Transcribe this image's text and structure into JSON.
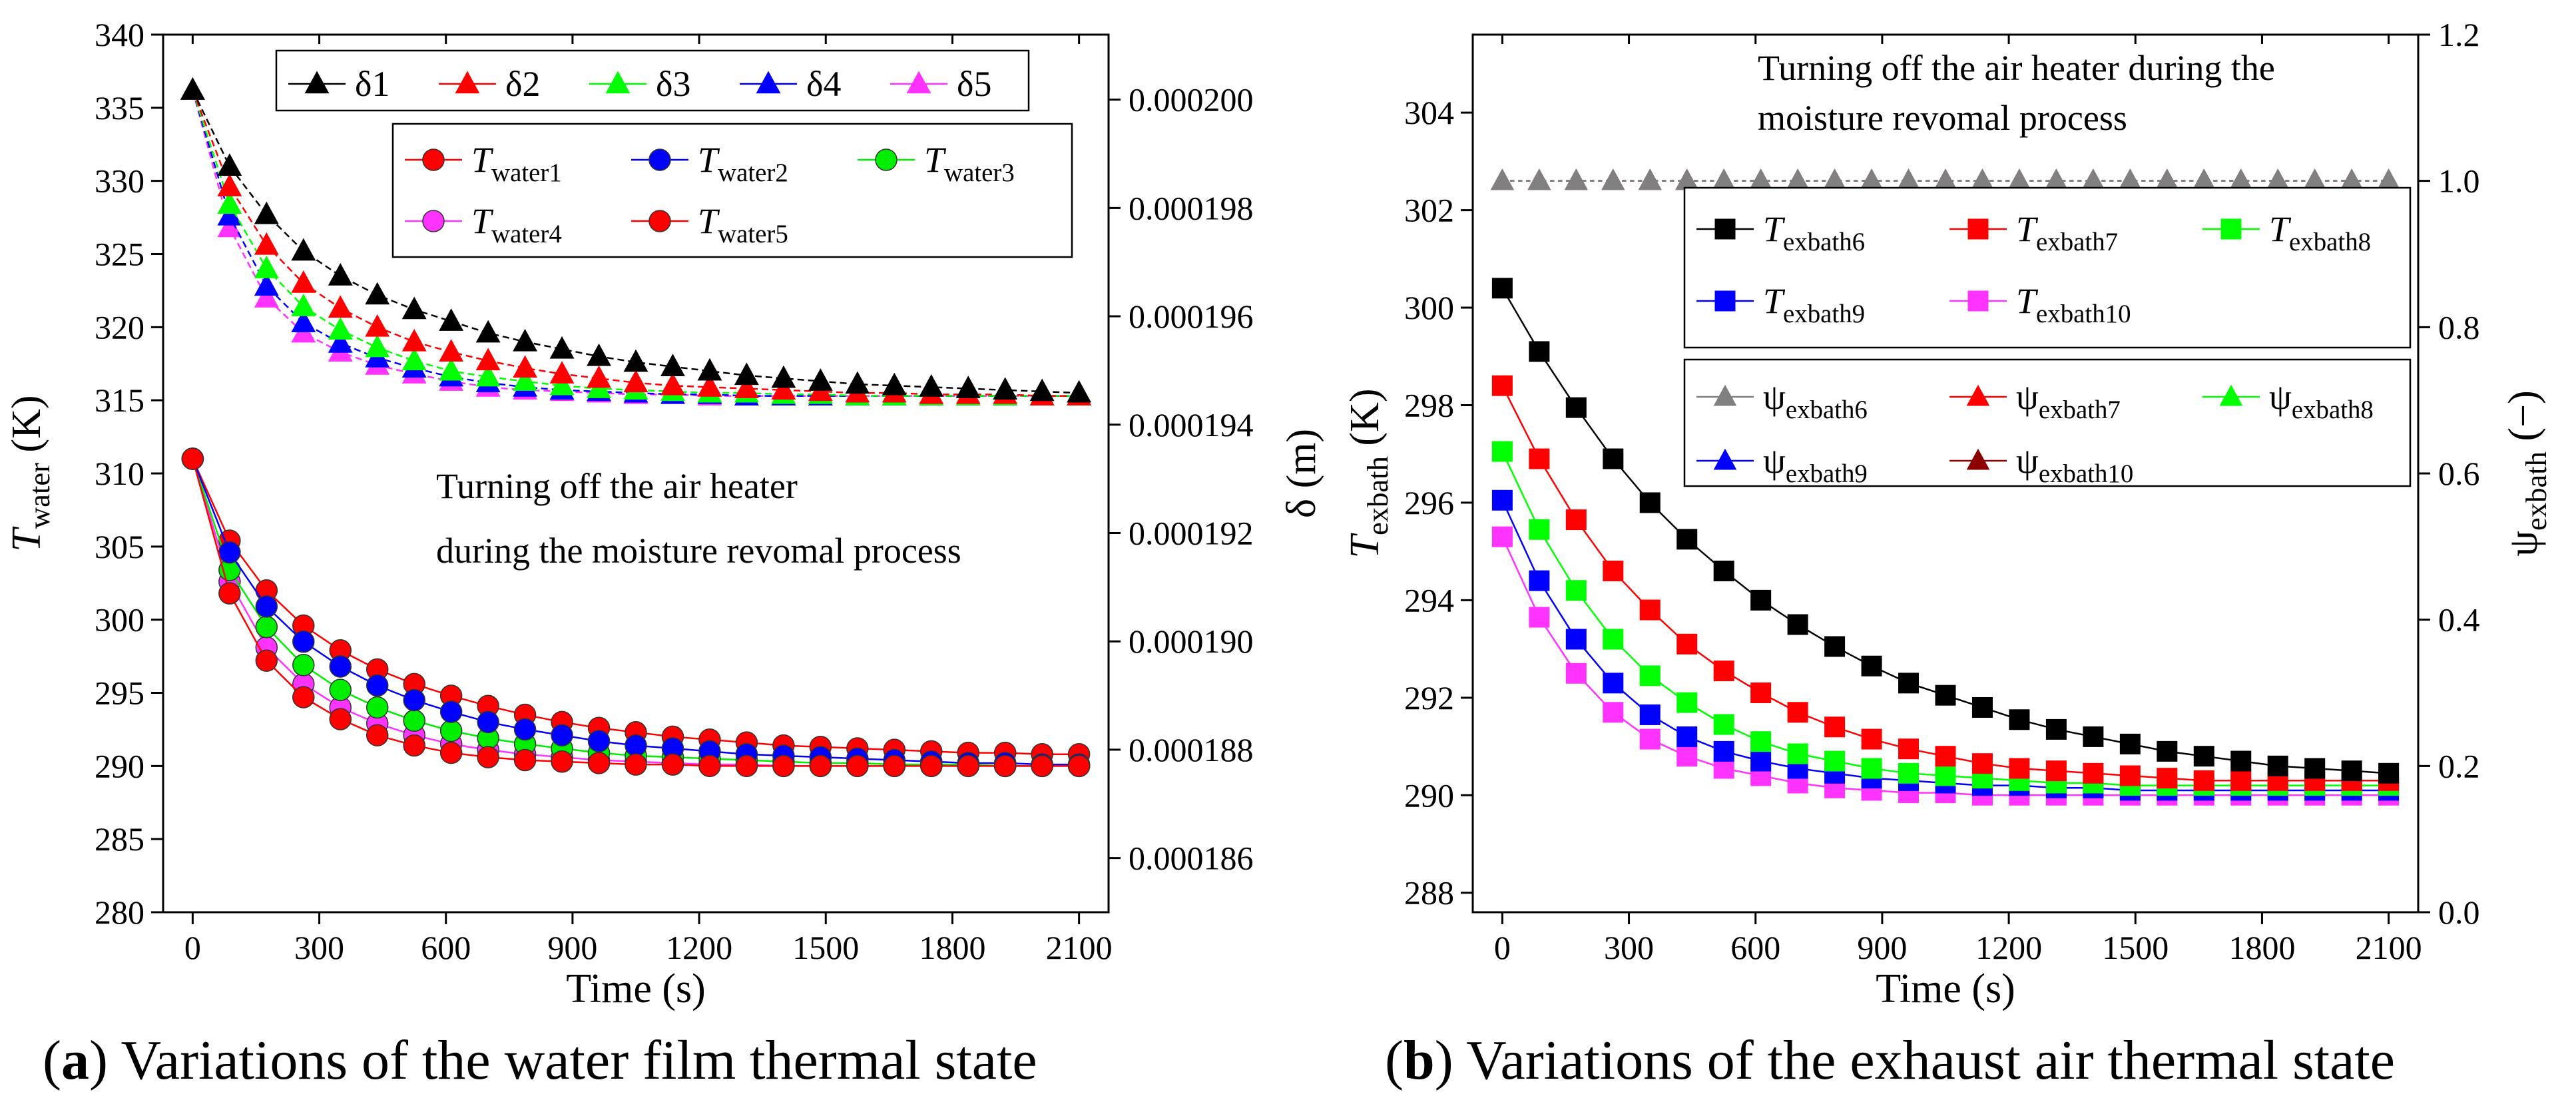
{
  "chart_data": [
    {
      "id": "a",
      "type": "line",
      "caption": {
        "label": "a",
        "text": " Variations of the water film thermal state"
      },
      "x": [
        0,
        87.5,
        175,
        262.5,
        350,
        437.5,
        525,
        612.5,
        700,
        787.5,
        875,
        962.5,
        1050,
        1137.5,
        1225,
        1312.5,
        1400,
        1487.5,
        1575,
        1662.5,
        1750,
        1837.5,
        1925,
        2012.5,
        2100
      ],
      "xlabel": "Time  (s)",
      "xlim": [
        -70,
        2170
      ],
      "xticks": [
        0,
        300,
        600,
        900,
        1200,
        1500,
        1800,
        2100
      ],
      "ylabel_main": "T",
      "ylabel_sub": "water",
      "ylabel_unit": " (K)",
      "ylim": [
        280,
        340
      ],
      "yticks": [
        280,
        285,
        290,
        295,
        300,
        305,
        310,
        315,
        320,
        325,
        330,
        335,
        340
      ],
      "y2label": "δ (m)",
      "y2lim": [
        0.000185,
        0.0002012
      ],
      "y2ticks": [
        0.000186,
        0.000188,
        0.00019,
        0.000192,
        0.000194,
        0.000196,
        0.000198,
        0.0002
      ],
      "y2ticklabels": [
        "0.000186",
        "0.000188",
        "0.000190",
        "0.000192",
        "0.000194",
        "0.000196",
        "0.000198",
        "0.000200"
      ],
      "annotation": [
        "Turning off the air heater",
        "during the moisture revomal process"
      ],
      "series": [
        {
          "name": "δ1",
          "main": "δ1",
          "sub": "",
          "marker": "triangle",
          "color": "#000000",
          "legend": 1,
          "axis": "y",
          "values": [
            336.2,
            331.0,
            327.7,
            325.2,
            323.5,
            322.2,
            321.2,
            320.4,
            319.6,
            319.0,
            318.5,
            318.0,
            317.6,
            317.3,
            317.0,
            316.7,
            316.5,
            316.3,
            316.1,
            316.0,
            315.9,
            315.8,
            315.7,
            315.6,
            315.5
          ]
        },
        {
          "name": "δ2",
          "main": "δ2",
          "sub": "",
          "marker": "triangle",
          "color": "#ff0000",
          "legend": 1,
          "axis": "y",
          "values": [
            336.2,
            329.6,
            325.6,
            323.0,
            321.3,
            320.0,
            319.0,
            318.3,
            317.7,
            317.2,
            316.8,
            316.5,
            316.2,
            316.0,
            315.9,
            315.8,
            315.7,
            315.6,
            315.5,
            315.5,
            315.4,
            315.4,
            315.4,
            315.3,
            315.3
          ]
        },
        {
          "name": "δ3",
          "main": "δ3",
          "sub": "",
          "marker": "triangle",
          "color": "#00ff00",
          "legend": 1,
          "axis": "y",
          "values": [
            336.2,
            328.4,
            324.0,
            321.4,
            319.8,
            318.6,
            317.7,
            317.0,
            316.6,
            316.3,
            316.0,
            315.8,
            315.7,
            315.6,
            315.5,
            315.5,
            315.4,
            315.4,
            315.3,
            315.3,
            315.3,
            315.3,
            315.3,
            315.3,
            315.3
          ]
        },
        {
          "name": "δ4",
          "main": "δ4",
          "sub": "",
          "marker": "triangle",
          "color": "#0000ff",
          "legend": 1,
          "axis": "y",
          "values": [
            336.2,
            327.6,
            322.8,
            320.3,
            318.9,
            317.9,
            317.2,
            316.6,
            316.2,
            315.9,
            315.7,
            315.6,
            315.5,
            315.4,
            315.4,
            315.3,
            315.3,
            315.3,
            315.3,
            315.3,
            315.3,
            315.3,
            315.3,
            315.3,
            315.3
          ]
        },
        {
          "name": "δ5",
          "main": "δ5",
          "sub": "",
          "marker": "triangle",
          "color": "#ff33ff",
          "legend": 1,
          "axis": "y",
          "values": [
            336.2,
            326.8,
            322.0,
            319.6,
            318.3,
            317.4,
            316.8,
            316.3,
            315.9,
            315.7,
            315.6,
            315.5,
            315.4,
            315.4,
            315.3,
            315.3,
            315.3,
            315.3,
            315.3,
            315.3,
            315.3,
            315.3,
            315.3,
            315.3,
            315.3
          ]
        },
        {
          "name": "Twater1",
          "main": "T",
          "sub": "water1",
          "marker": "circle",
          "color": "#ff0000",
          "legend": 2,
          "axis": "y",
          "values": [
            311.0,
            301.8,
            297.2,
            294.7,
            293.2,
            292.1,
            291.4,
            290.9,
            290.6,
            290.4,
            290.3,
            290.2,
            290.1,
            290.1,
            290.0,
            290.0,
            290.0,
            290.0,
            290.0,
            290.0,
            290.0,
            290.0,
            290.0,
            290.0,
            290.0
          ]
        },
        {
          "name": "Twater2",
          "main": "T",
          "sub": "water2",
          "marker": "circle",
          "color": "#0000ff",
          "legend": 2,
          "axis": "y",
          "values": [
            311.0,
            304.6,
            300.9,
            298.5,
            296.8,
            295.5,
            294.5,
            293.7,
            293.0,
            292.5,
            292.1,
            291.7,
            291.4,
            291.2,
            291.0,
            290.8,
            290.7,
            290.6,
            290.5,
            290.4,
            290.3,
            290.2,
            290.2,
            290.1,
            290.1
          ]
        },
        {
          "name": "Twater3",
          "main": "T",
          "sub": "water3",
          "marker": "circle",
          "color": "#00ee00",
          "legend": 2,
          "axis": "y",
          "values": [
            311.0,
            303.4,
            299.5,
            296.9,
            295.2,
            294.0,
            293.1,
            292.4,
            291.9,
            291.5,
            291.2,
            290.9,
            290.7,
            290.6,
            290.5,
            290.4,
            290.3,
            290.2,
            290.2,
            290.1,
            290.1,
            290.1,
            290.0,
            290.0,
            290.0
          ]
        },
        {
          "name": "Twater4",
          "main": "T",
          "sub": "water4",
          "marker": "circle",
          "color": "#ff33ff",
          "legend": 2,
          "axis": "y",
          "values": [
            311.0,
            302.6,
            298.1,
            295.6,
            294.0,
            292.9,
            292.1,
            291.5,
            291.1,
            290.8,
            290.6,
            290.4,
            290.3,
            290.2,
            290.1,
            290.1,
            290.0,
            290.0,
            290.0,
            290.0,
            290.0,
            290.0,
            290.0,
            290.0,
            290.0
          ]
        },
        {
          "name": "Twater5",
          "main": "T",
          "sub": "water5",
          "marker": "circle",
          "color": "#ff0000",
          "legend": 2,
          "axis": "y",
          "values": [
            311.0,
            305.4,
            302.0,
            299.6,
            297.9,
            296.6,
            295.6,
            294.8,
            294.1,
            293.5,
            293.0,
            292.6,
            292.3,
            292.0,
            291.8,
            291.6,
            291.4,
            291.3,
            291.2,
            291.1,
            291.0,
            290.9,
            290.9,
            290.8,
            290.8
          ]
        }
      ]
    },
    {
      "id": "b",
      "type": "line",
      "caption": {
        "label": "b",
        "text": " Variations of the exhaust air thermal state"
      },
      "x": [
        0,
        87.5,
        175,
        262.5,
        350,
        437.5,
        525,
        612.5,
        700,
        787.5,
        875,
        962.5,
        1050,
        1137.5,
        1225,
        1312.5,
        1400,
        1487.5,
        1575,
        1662.5,
        1750,
        1837.5,
        1925,
        2012.5,
        2100
      ],
      "xlabel": "Time (s)",
      "xlim": [
        -70,
        2170
      ],
      "xticks": [
        0,
        300,
        600,
        900,
        1200,
        1500,
        1800,
        2100
      ],
      "ylabel_main": "T",
      "ylabel_sub": "exbath",
      "ylabel_unit": " (K)",
      "ylim": [
        287.6,
        305.6
      ],
      "yticks": [
        288,
        290,
        292,
        294,
        296,
        298,
        300,
        302,
        304
      ],
      "y2label_main": "ψ",
      "y2label_sub": "exbath",
      "y2label_unit": " (−)",
      "y2lim": [
        0,
        1.2
      ],
      "y2ticks": [
        0,
        0.2,
        0.4,
        0.6,
        0.8,
        1.0,
        1.2
      ],
      "y2ticklabels": [
        "0.0",
        "0.2",
        "0.4",
        "0.6",
        "0.8",
        "1.0",
        "1.2"
      ],
      "annotation": [
        "Turning off the air heater during the",
        "moisture revomal process"
      ],
      "series": [
        {
          "name": "Texbath6",
          "main": "T",
          "sub": "exbath6",
          "marker": "square",
          "color": "#000000",
          "legend": 1,
          "axis": "y",
          "values": [
            300.4,
            299.1,
            297.95,
            296.9,
            296.0,
            295.25,
            294.6,
            294.0,
            293.5,
            293.05,
            292.65,
            292.3,
            292.05,
            291.8,
            291.55,
            291.35,
            291.2,
            291.05,
            290.9,
            290.8,
            290.7,
            290.6,
            290.55,
            290.5,
            290.45
          ]
        },
        {
          "name": "Texbath7",
          "main": "T",
          "sub": "exbath7",
          "marker": "square",
          "color": "#ff0000",
          "legend": 1,
          "axis": "y",
          "values": [
            298.4,
            296.9,
            295.65,
            294.6,
            293.8,
            293.1,
            292.55,
            292.1,
            291.7,
            291.4,
            291.15,
            290.95,
            290.8,
            290.65,
            290.55,
            290.5,
            290.45,
            290.4,
            290.35,
            290.3,
            290.3,
            290.3,
            290.3,
            290.3,
            290.3
          ]
        },
        {
          "name": "Texbath8",
          "main": "T",
          "sub": "exbath8",
          "marker": "square",
          "color": "#00ff00",
          "legend": 1,
          "axis": "y",
          "values": [
            297.05,
            295.45,
            294.2,
            293.2,
            292.45,
            291.9,
            291.45,
            291.1,
            290.85,
            290.7,
            290.55,
            290.45,
            290.4,
            290.35,
            290.3,
            290.25,
            290.25,
            290.2,
            290.2,
            290.2,
            290.2,
            290.2,
            290.2,
            290.2,
            290.2
          ]
        },
        {
          "name": "Texbath9",
          "main": "T",
          "sub": "exbath9",
          "marker": "square",
          "color": "#0000ff",
          "legend": 1,
          "axis": "y",
          "values": [
            296.05,
            294.4,
            293.2,
            292.3,
            291.65,
            291.2,
            290.9,
            290.7,
            290.55,
            290.45,
            290.35,
            290.3,
            290.25,
            290.2,
            290.2,
            290.15,
            290.15,
            290.1,
            290.1,
            290.1,
            290.1,
            290.1,
            290.1,
            290.1,
            290.1
          ]
        },
        {
          "name": "Texbath10",
          "main": "T",
          "sub": "exbath10",
          "marker": "square",
          "color": "#ff33ff",
          "legend": 1,
          "axis": "y",
          "values": [
            295.3,
            293.65,
            292.5,
            291.7,
            291.15,
            290.8,
            290.55,
            290.4,
            290.25,
            290.15,
            290.1,
            290.05,
            290.05,
            290.0,
            290.0,
            290.0,
            290.0,
            290.0,
            290.0,
            290.0,
            290.0,
            290.0,
            290.0,
            290.0,
            290.0
          ]
        },
        {
          "name": "ψexbath6",
          "main": "ψ",
          "sub": "exbath6",
          "marker": "triangle",
          "color": "#808080",
          "legend": 2,
          "axis": "y2",
          "values": [
            1,
            1,
            1,
            1,
            1,
            1,
            1,
            1,
            1,
            1,
            1,
            1,
            1,
            1,
            1,
            1,
            1,
            1,
            1,
            1,
            1,
            1,
            1,
            1,
            1
          ]
        },
        {
          "name": "ψexbath7",
          "main": "ψ",
          "sub": "exbath7",
          "marker": "triangle",
          "color": "#ff0000",
          "legend": 2,
          "axis": "y2",
          "values": [
            1,
            1,
            1,
            1,
            1,
            1,
            1,
            1,
            1,
            1,
            1,
            1,
            1,
            1,
            1,
            1,
            1,
            1,
            1,
            1,
            1,
            1,
            1,
            1,
            1
          ]
        },
        {
          "name": "ψexbath8",
          "main": "ψ",
          "sub": "exbath8",
          "marker": "triangle",
          "color": "#00ff00",
          "legend": 2,
          "axis": "y2",
          "values": [
            1,
            1,
            1,
            1,
            1,
            1,
            1,
            1,
            1,
            1,
            1,
            1,
            1,
            1,
            1,
            1,
            1,
            1,
            1,
            1,
            1,
            1,
            1,
            1,
            1
          ]
        },
        {
          "name": "ψexbath9",
          "main": "ψ",
          "sub": "exbath9",
          "marker": "triangle",
          "color": "#0000ff",
          "legend": 2,
          "axis": "y2",
          "values": [
            1,
            1,
            1,
            1,
            1,
            1,
            1,
            1,
            1,
            1,
            1,
            1,
            1,
            1,
            1,
            1,
            1,
            1,
            1,
            1,
            1,
            1,
            1,
            1,
            1
          ]
        },
        {
          "name": "ψexbath10",
          "main": "ψ",
          "sub": "exbath10",
          "marker": "triangle",
          "color": "#8b0000",
          "legend": 2,
          "axis": "y2",
          "values": [
            1,
            1,
            1,
            1,
            1,
            1,
            1,
            1,
            1,
            1,
            1,
            1,
            1,
            1,
            1,
            1,
            1,
            1,
            1,
            1,
            1,
            1,
            1,
            1,
            1
          ]
        }
      ]
    }
  ]
}
